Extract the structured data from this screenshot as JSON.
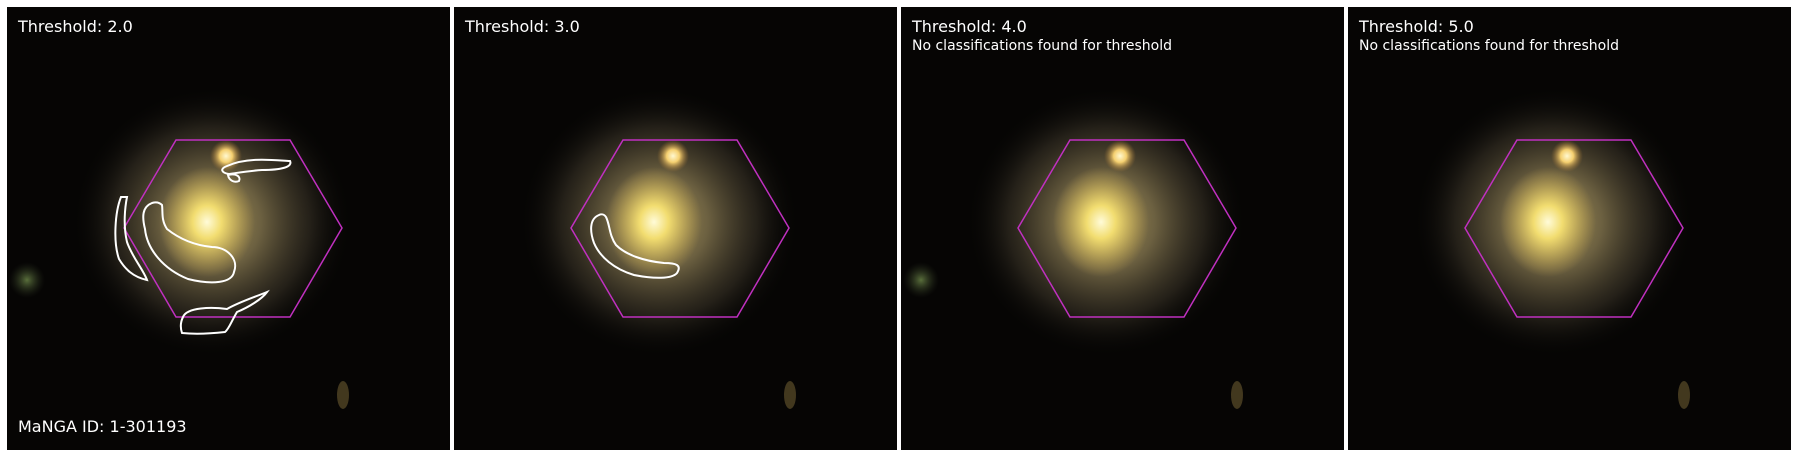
{
  "panels": [
    {
      "threshold_label": "Threshold: 2.0",
      "note": "",
      "contour_count": 4,
      "manga_id_label": "MaNGA ID: 1-301193"
    },
    {
      "threshold_label": "Threshold: 3.0",
      "note": "",
      "contour_count": 1,
      "manga_id_label": ""
    },
    {
      "threshold_label": "Threshold: 4.0",
      "note": "No classifications found for threshold",
      "contour_count": 0,
      "manga_id_label": ""
    },
    {
      "threshold_label": "Threshold: 5.0",
      "note": "No classifications found for threshold",
      "contour_count": 0,
      "manga_id_label": ""
    }
  ],
  "colors": {
    "hexagon": "#c030c0",
    "contour": "#ffffff",
    "galaxy_core": "#fff2a0",
    "galaxy_halo": "#8a7a55",
    "star": "#ffe9a8",
    "background": "#060504",
    "separator": "#ffffff"
  }
}
